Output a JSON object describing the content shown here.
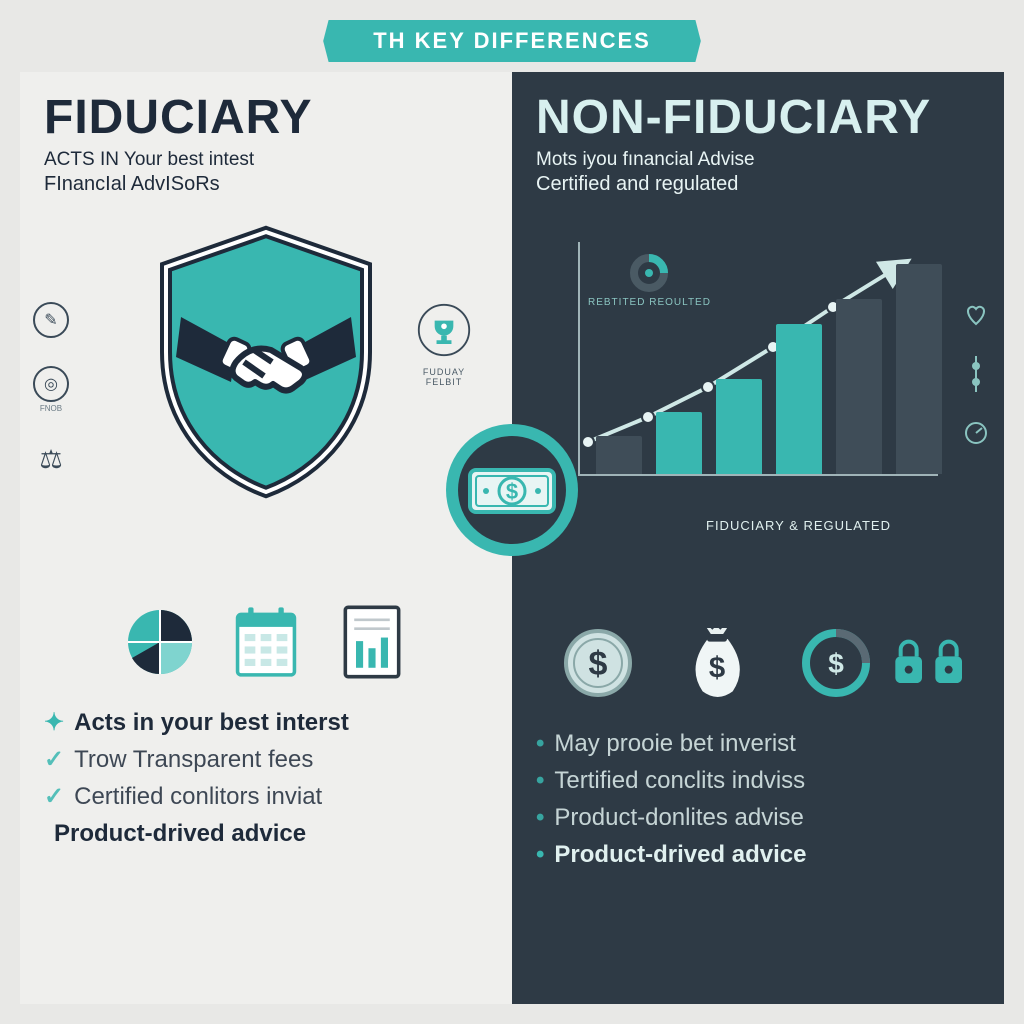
{
  "palette": {
    "teal": "#39b7b0",
    "teal_dark": "#2e9a94",
    "navy": "#1e2a3a",
    "slate": "#2e3a45",
    "offwhite": "#efefed",
    "paper": "#e8e8e6",
    "grey": "#6a7a84",
    "line": "#a0b4b8"
  },
  "banner": "TH KEY DIFFERENCES",
  "left": {
    "title": "FIDUCIARY",
    "subtitle_line1": "ACTS IN Your best intest",
    "subtitle_line2": "FInancIal AdvISoRs",
    "bullets": [
      {
        "text": "Acts in your best interst",
        "marker": "✦",
        "style": "bold"
      },
      {
        "text": "Trow Transparent fees",
        "marker": "✓",
        "style": "dim"
      },
      {
        "text": "Certified conlitors inviat",
        "marker": "✓",
        "style": "dim"
      },
      {
        "text": "Product-drived advice",
        "marker": "",
        "style": "bold"
      }
    ],
    "trophy_label": "FUDUAY FELBIT",
    "icon_row_label_chart": "",
    "side_label": "FNOB"
  },
  "right": {
    "title": "NON-FIDUCIARY",
    "subtitle_line1": "Mots iyou fınancial Advise",
    "subtitle_line2": "Certified and regulated",
    "chart": {
      "type": "bar+line",
      "bar_values": [
        38,
        62,
        95,
        150,
        175,
        210
      ],
      "bar_colors": [
        "#3f4d58",
        "#39b7b0",
        "#39b7b0",
        "#39b7b0",
        "#3f4d58",
        "#3f4d58"
      ],
      "line_points": [
        [
          10,
          200
        ],
        [
          70,
          175
        ],
        [
          130,
          145
        ],
        [
          195,
          105
        ],
        [
          255,
          65
        ],
        [
          320,
          25
        ]
      ],
      "arrow": true,
      "top_label": "REBTITED REOULTED",
      "axis_color": "#a0b4b8",
      "bg": "#2e3a45"
    },
    "mid_label": "FIDUCIARY & REGULATED",
    "bullets": [
      {
        "text": "May prooie bet inverist",
        "marker": "•",
        "style": "dim"
      },
      {
        "text": "Tertified conclits indviss",
        "marker": "•",
        "style": "dim"
      },
      {
        "text": "Product-donlites advise",
        "marker": "•",
        "style": "dim"
      },
      {
        "text": "Product-drived advice",
        "marker": "•",
        "style": "bold"
      }
    ]
  },
  "center_badge": {
    "symbol": "$",
    "ring_color": "#39b7b0",
    "fill": "#e8f5f4"
  }
}
